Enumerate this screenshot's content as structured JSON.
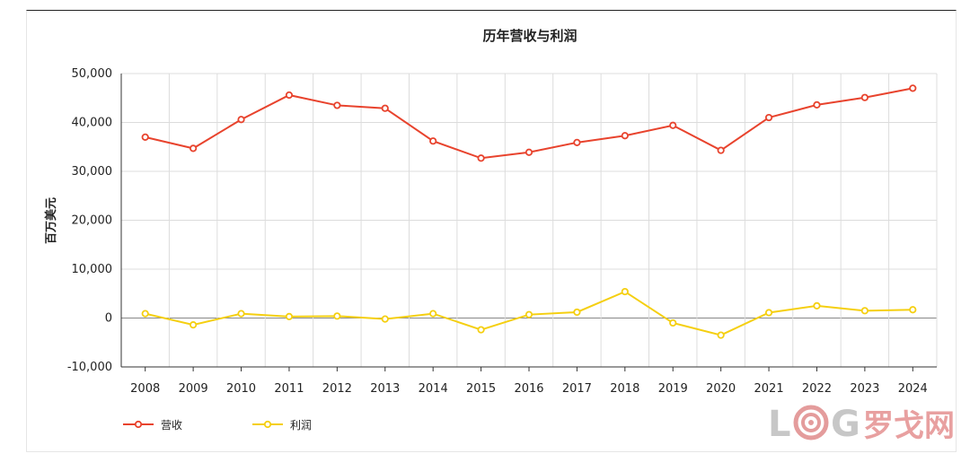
{
  "chart_data": {
    "type": "line",
    "title": "历年营收与利润",
    "xlabel": "",
    "ylabel": "百万美元",
    "ylim": [
      -10000,
      50000
    ],
    "yticks": [
      -10000,
      0,
      10000,
      20000,
      30000,
      40000,
      50000
    ],
    "ytick_labels": [
      "-10,000",
      "0",
      "10,000",
      "20,000",
      "30,000",
      "40,000",
      "50,000"
    ],
    "categories": [
      "2008",
      "2009",
      "2010",
      "2011",
      "2012",
      "2013",
      "2014",
      "2015",
      "2016",
      "2017",
      "2018",
      "2019",
      "2020",
      "2021",
      "2022",
      "2023",
      "2024"
    ],
    "series": [
      {
        "name": "营收",
        "color": "#e8432d",
        "values": [
          37000,
          34700,
          40600,
          45600,
          43500,
          42900,
          36200,
          32700,
          33900,
          35900,
          37300,
          39400,
          34300,
          41000,
          43600,
          45100,
          47000
        ]
      },
      {
        "name": "利润",
        "color": "#f5cf10",
        "values": [
          900,
          -1400,
          900,
          300,
          400,
          -200,
          900,
          -2400,
          700,
          1200,
          5400,
          -1000,
          -3500,
          1100,
          2500,
          1500,
          1700
        ]
      }
    ],
    "grid": true,
    "legend_position": "bottom-left"
  },
  "watermark": {
    "logo_text": "LOG",
    "brand_text": "罗戈网"
  }
}
